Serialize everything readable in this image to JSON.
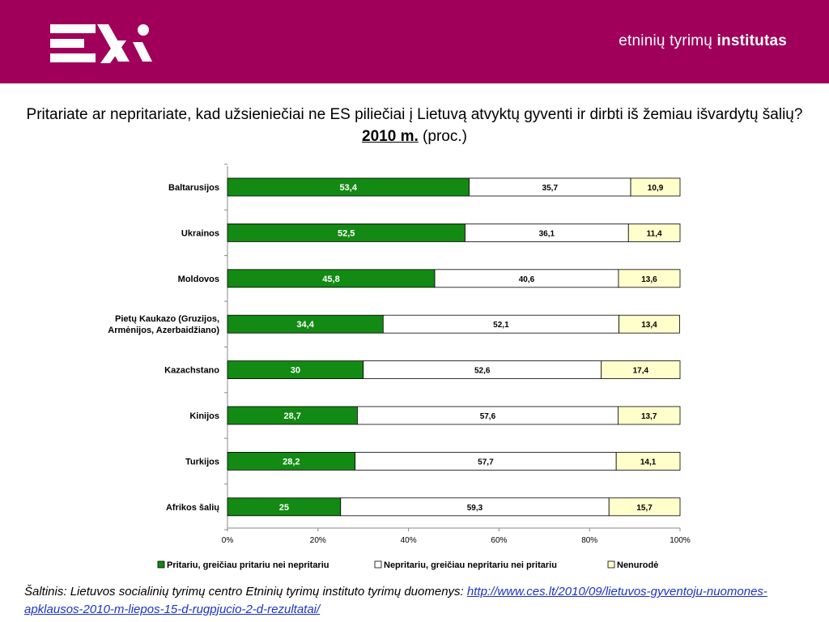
{
  "header": {
    "brand_light": "etninių tyrimų",
    "brand_bold": "institutas",
    "bg_color": "#a0005a"
  },
  "title": {
    "main": "Pritariate ar nepritariate, kad užsieniečiai ne ES piliečiai į Lietuvą atvyktų gyventi ir dirbti iš žemiau išvardytų šalių?",
    "year": "2010 m.",
    "unit": "(proc.)"
  },
  "chart_data": {
    "type": "bar",
    "orientation": "horizontal",
    "stacked": "percent",
    "categories": [
      "Baltarusijos",
      "Ukrainos",
      "Moldovos",
      "Pietų Kaukazo (Gruzijos, Armėnijos, Azerbaidžiano)",
      "Kazachstano",
      "Kinijos",
      "Turkijos",
      "Afrikos šalių"
    ],
    "category_lines": [
      [
        "Baltarusijos"
      ],
      [
        "Ukrainos"
      ],
      [
        "Moldovos"
      ],
      [
        "Pietų Kaukazo (Gruzijos,",
        "Armėnijos, Azerbaidžiano)"
      ],
      [
        "Kazachstano"
      ],
      [
        "Kinijos"
      ],
      [
        "Turkijos"
      ],
      [
        "Afrikos šalių"
      ]
    ],
    "series": [
      {
        "name": "Pritariu, greičiau pritariu nei nepritariu",
        "color": "#138a13",
        "label_color": "#ffffff",
        "values": [
          53.4,
          52.5,
          45.8,
          34.4,
          30,
          28.7,
          28.2,
          25
        ]
      },
      {
        "name": "Nepritariu, greičiau nepritariu nei pritariu",
        "color": "#ffffff",
        "label_color": "#000000",
        "values": [
          35.7,
          36.1,
          40.6,
          52.1,
          52.6,
          57.6,
          57.7,
          59.3
        ]
      },
      {
        "name": "Nenurodė",
        "color": "#ffffcc",
        "label_color": "#000000",
        "values": [
          10.9,
          11.4,
          13.6,
          13.4,
          17.4,
          13.7,
          14.1,
          15.7
        ]
      }
    ],
    "value_labels": [
      [
        "53,4",
        "52,5",
        "45,8",
        "34,4",
        "30",
        "28,7",
        "28,2",
        "25"
      ],
      [
        "35,7",
        "36,1",
        "40,6",
        "52,1",
        "52,6",
        "57,6",
        "57,7",
        "59,3"
      ],
      [
        "10,9",
        "11,4",
        "13,6",
        "13,4",
        "17,4",
        "13,7",
        "14,1",
        "15,7"
      ]
    ],
    "xticks": [
      "0%",
      "20%",
      "40%",
      "60%",
      "80%",
      "100%"
    ],
    "xlim": [
      0,
      100
    ],
    "grid": false,
    "legend_position": "bottom"
  },
  "source": {
    "prefix": "Šaltinis: Lietuvos socialinių tyrimų centro Etninių tyrimų instituto tyrimų duomenys:",
    "link": "http://www.ces.lt/2010/09/lietuvos-gyventoju-nuomones-apklausos-2010-m-liepos-15-d-rugpjucio-2-d-rezultatai/"
  }
}
